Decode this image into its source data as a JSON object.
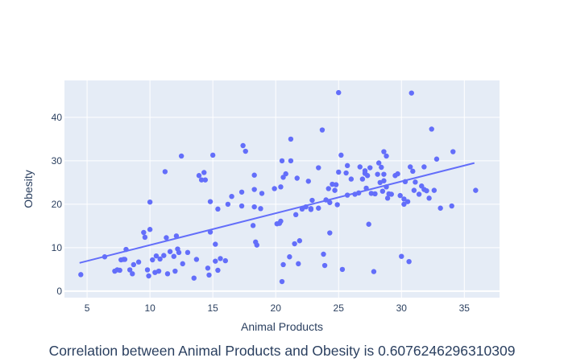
{
  "caption": "Correlation between Animal Products and Obesity is 0.6076246296310309",
  "chart_data": {
    "type": "scatter",
    "xlabel": "Animal Products",
    "ylabel": "Obesity",
    "xlim": [
      3.2,
      37.8
    ],
    "ylim": [
      -1.5,
      48.5
    ],
    "xticks": [
      5,
      10,
      15,
      20,
      25,
      30,
      35
    ],
    "yticks": [
      0,
      10,
      20,
      30,
      40
    ],
    "grid": true,
    "legend": "none",
    "colors": {
      "marker": "#636efa",
      "line": "#636efa",
      "plot_bg": "#e5ecf6",
      "grid": "#ffffff",
      "text": "#2a3f5f"
    },
    "trendline": {
      "x": [
        4.4,
        35.8
      ],
      "y": [
        6.5,
        29.5
      ]
    },
    "points": [
      [
        4.5,
        3.8
      ],
      [
        6.4,
        7.9
      ],
      [
        7.2,
        4.6
      ],
      [
        7.4,
        4.9
      ],
      [
        7.6,
        4.8
      ],
      [
        7.7,
        7.2
      ],
      [
        7.9,
        7.3
      ],
      [
        8.0,
        7.3
      ],
      [
        8.1,
        9.6
      ],
      [
        8.4,
        4.9
      ],
      [
        8.7,
        6.1
      ],
      [
        8.6,
        4.0
      ],
      [
        9.1,
        6.7
      ],
      [
        9.5,
        13.5
      ],
      [
        9.6,
        12.4
      ],
      [
        9.8,
        4.9
      ],
      [
        9.9,
        3.5
      ],
      [
        10.0,
        14.2
      ],
      [
        10.0,
        20.5
      ],
      [
        10.2,
        7.2
      ],
      [
        10.4,
        4.3
      ],
      [
        10.5,
        8.1
      ],
      [
        10.7,
        4.6
      ],
      [
        10.8,
        7.4
      ],
      [
        11.1,
        8.2
      ],
      [
        11.2,
        27.5
      ],
      [
        11.3,
        12.3
      ],
      [
        11.4,
        4.0
      ],
      [
        11.6,
        9.1
      ],
      [
        11.9,
        8.0
      ],
      [
        12.0,
        4.6
      ],
      [
        12.1,
        12.7
      ],
      [
        12.2,
        9.7
      ],
      [
        12.3,
        8.9
      ],
      [
        12.5,
        31.1
      ],
      [
        12.6,
        6.3
      ],
      [
        13.0,
        8.9
      ],
      [
        13.5,
        3.0
      ],
      [
        13.7,
        7.3
      ],
      [
        13.9,
        26.6
      ],
      [
        14.1,
        25.6
      ],
      [
        14.3,
        27.3
      ],
      [
        14.4,
        25.6
      ],
      [
        14.6,
        5.3
      ],
      [
        14.7,
        3.7
      ],
      [
        14.8,
        13.6
      ],
      [
        14.8,
        20.6
      ],
      [
        15.0,
        31.3
      ],
      [
        15.2,
        6.9
      ],
      [
        15.2,
        10.8
      ],
      [
        15.4,
        18.9
      ],
      [
        15.4,
        4.8
      ],
      [
        15.6,
        7.5
      ],
      [
        16.0,
        7.0
      ],
      [
        16.2,
        20.0
      ],
      [
        16.5,
        21.8
      ],
      [
        17.3,
        19.6
      ],
      [
        17.3,
        22.8
      ],
      [
        17.4,
        33.5
      ],
      [
        17.6,
        32.2
      ],
      [
        18.2,
        15.1
      ],
      [
        18.3,
        19.4
      ],
      [
        18.3,
        26.7
      ],
      [
        18.3,
        23.4
      ],
      [
        18.4,
        11.3
      ],
      [
        18.5,
        10.6
      ],
      [
        18.8,
        19.0
      ],
      [
        18.9,
        22.5
      ],
      [
        19.9,
        23.6
      ],
      [
        20.1,
        15.5
      ],
      [
        20.3,
        15.6
      ],
      [
        20.4,
        16.1
      ],
      [
        20.4,
        24.0
      ],
      [
        20.5,
        30.0
      ],
      [
        20.5,
        2.2
      ],
      [
        20.6,
        6.1
      ],
      [
        20.6,
        26.2
      ],
      [
        20.8,
        27.0
      ],
      [
        21.1,
        7.9
      ],
      [
        21.2,
        30.0
      ],
      [
        21.2,
        35.0
      ],
      [
        21.5,
        10.9
      ],
      [
        21.6,
        17.6
      ],
      [
        21.7,
        26.0
      ],
      [
        21.8,
        6.3
      ],
      [
        21.9,
        11.6
      ],
      [
        22.1,
        18.9
      ],
      [
        22.4,
        19.4
      ],
      [
        22.6,
        25.3
      ],
      [
        22.8,
        18.8
      ],
      [
        22.8,
        19.0
      ],
      [
        22.9,
        20.9
      ],
      [
        23.4,
        28.4
      ],
      [
        23.4,
        19.1
      ],
      [
        23.7,
        37.1
      ],
      [
        23.8,
        8.5
      ],
      [
        23.9,
        5.9
      ],
      [
        24.0,
        21.0
      ],
      [
        24.2,
        23.6
      ],
      [
        24.3,
        13.4
      ],
      [
        24.3,
        20.4
      ],
      [
        24.5,
        24.6
      ],
      [
        24.7,
        23.2
      ],
      [
        24.8,
        24.5
      ],
      [
        24.9,
        19.9
      ],
      [
        25.0,
        27.4
      ],
      [
        25.0,
        45.7
      ],
      [
        25.2,
        31.3
      ],
      [
        25.3,
        5.0
      ],
      [
        25.6,
        27.2
      ],
      [
        25.7,
        22.1
      ],
      [
        25.7,
        28.9
      ],
      [
        26.0,
        25.8
      ],
      [
        26.3,
        22.3
      ],
      [
        26.6,
        22.6
      ],
      [
        26.7,
        28.6
      ],
      [
        26.9,
        25.8
      ],
      [
        27.1,
        27.1
      ],
      [
        27.1,
        27.7
      ],
      [
        27.2,
        23.7
      ],
      [
        27.3,
        26.6
      ],
      [
        27.4,
        15.4
      ],
      [
        27.5,
        28.4
      ],
      [
        27.6,
        22.5
      ],
      [
        27.8,
        4.5
      ],
      [
        27.9,
        22.4
      ],
      [
        28.1,
        26.9
      ],
      [
        28.2,
        29.5
      ],
      [
        28.3,
        25.0
      ],
      [
        28.4,
        28.5
      ],
      [
        28.5,
        23.0
      ],
      [
        28.6,
        26.9
      ],
      [
        28.6,
        25.4
      ],
      [
        28.6,
        32.1
      ],
      [
        28.8,
        24.0
      ],
      [
        28.8,
        31.1
      ],
      [
        28.9,
        21.4
      ],
      [
        29.0,
        22.4
      ],
      [
        29.2,
        22.3
      ],
      [
        29.5,
        26.6
      ],
      [
        29.7,
        27.0
      ],
      [
        29.9,
        22.0
      ],
      [
        30.0,
        8.0
      ],
      [
        30.2,
        21.2
      ],
      [
        30.2,
        20.0
      ],
      [
        30.3,
        25.2
      ],
      [
        30.5,
        20.6
      ],
      [
        30.6,
        6.8
      ],
      [
        30.7,
        28.6
      ],
      [
        30.8,
        45.6
      ],
      [
        30.9,
        27.6
      ],
      [
        31.0,
        23.2
      ],
      [
        31.1,
        25.1
      ],
      [
        31.4,
        22.3
      ],
      [
        31.6,
        24.2
      ],
      [
        31.8,
        28.6
      ],
      [
        31.8,
        23.4
      ],
      [
        32.0,
        23.1
      ],
      [
        32.2,
        21.4
      ],
      [
        32.4,
        37.3
      ],
      [
        32.6,
        23.2
      ],
      [
        32.8,
        30.4
      ],
      [
        33.1,
        19.1
      ],
      [
        34.0,
        19.6
      ],
      [
        34.1,
        32.1
      ],
      [
        35.9,
        23.2
      ]
    ]
  }
}
